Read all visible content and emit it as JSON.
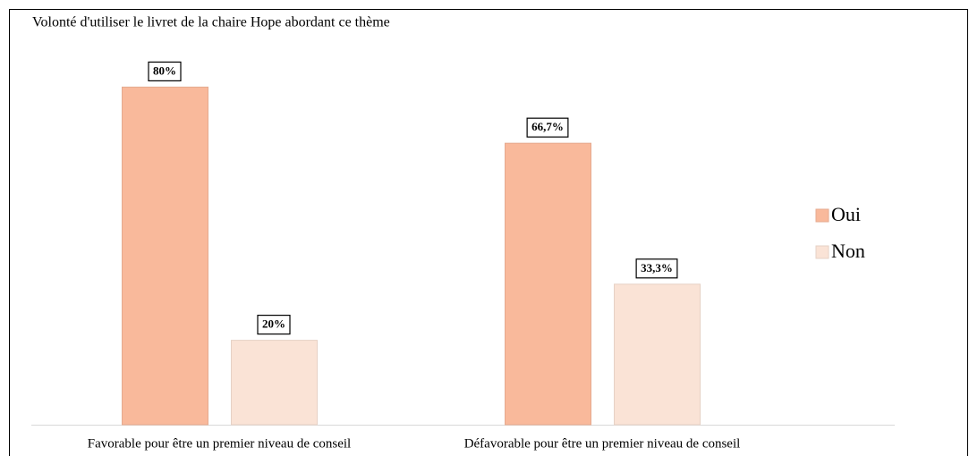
{
  "chart_data": {
    "type": "bar",
    "title": "Volonté d'utiliser le livret de la chaire Hope abordant ce thème",
    "categories": [
      "Favorable pour être un premier niveau de conseil",
      "Défavorable pour être un premier niveau de conseil"
    ],
    "series": [
      {
        "name": "Oui",
        "color": "#f9b99b",
        "values": [
          80,
          66.7
        ],
        "value_labels": [
          "80%",
          "66,7%"
        ]
      },
      {
        "name": "Non",
        "color": "#fae3d6",
        "values": [
          20,
          33.3
        ],
        "value_labels": [
          "20%",
          "33,3%"
        ]
      }
    ],
    "legend": "right"
  }
}
